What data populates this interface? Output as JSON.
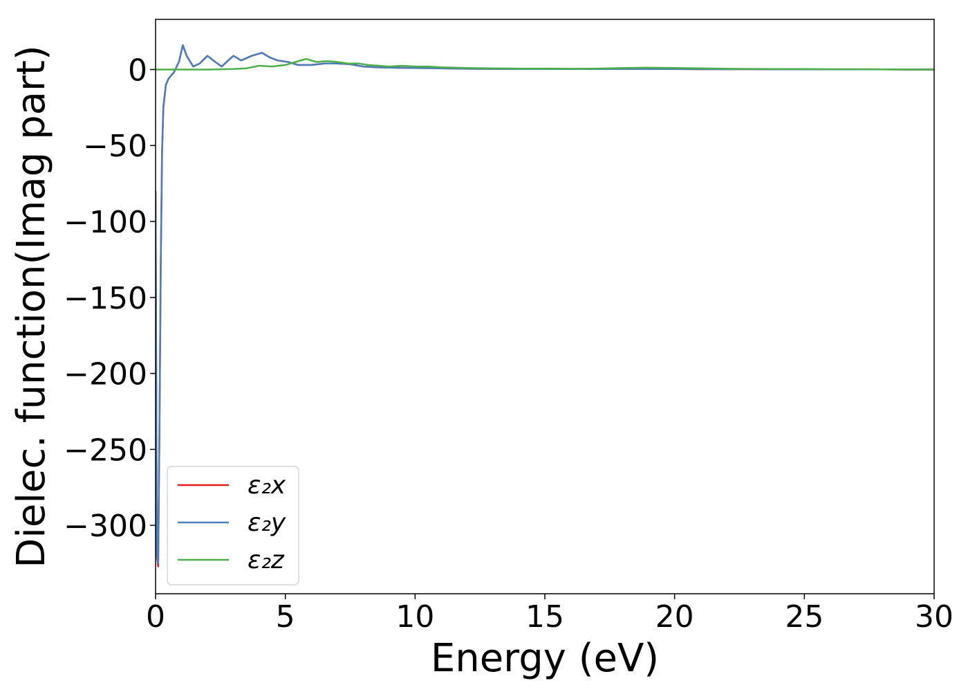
{
  "chart_data": {
    "type": "line",
    "xlabel": "Energy (eV)",
    "ylabel": "Dielec. function(Imag part)",
    "xlim": [
      0,
      30
    ],
    "ylim": [
      -345,
      33
    ],
    "x_ticks": [
      0,
      5,
      10,
      15,
      20,
      25,
      30
    ],
    "y_ticks": [
      0,
      -50,
      -100,
      -150,
      -200,
      -250,
      -300
    ],
    "x_tick_labels": [
      "0",
      "5",
      "10",
      "15",
      "20",
      "25",
      "30"
    ],
    "y_tick_labels": [
      "0",
      "−50",
      "−100",
      "−150",
      "−200",
      "−250",
      "−300"
    ],
    "grid": false,
    "legend_position": "lower-left",
    "series": [
      {
        "name": "ε₂x",
        "color": "#e41a1c",
        "x": [
          0,
          0.05,
          0.1,
          0.15,
          0.2,
          0.25,
          0.3,
          0.4,
          0.5,
          0.7,
          0.9,
          1.05,
          1.2,
          1.45,
          1.7,
          2.0,
          2.3,
          2.55,
          2.8,
          3.0,
          3.3,
          3.7,
          4.1,
          4.4,
          4.7,
          5.1,
          5.5,
          6.0,
          6.5,
          7.0,
          7.5,
          8.0,
          8.5,
          9.0,
          10.0,
          11.0,
          12.0,
          13.0,
          14.0,
          15.0,
          16.0,
          17.0,
          18.0,
          19.0,
          20.0,
          21.0,
          22.0,
          23.0,
          24.0,
          25.0,
          26.0,
          27.0,
          28.0,
          29.0,
          30.0
        ],
        "values": [
          -80,
          -320,
          -327,
          -240,
          -130,
          -55,
          -25,
          -10,
          -6,
          -2,
          5,
          16,
          9,
          2,
          4,
          9,
          5,
          2,
          6,
          9,
          6,
          9,
          11,
          8,
          6,
          5,
          3,
          3,
          4,
          4,
          3.5,
          2,
          1.5,
          1.2,
          1,
          0.8,
          0.5,
          0.4,
          0.3,
          0.3,
          0.3,
          0.3,
          0.3,
          0.3,
          0.3,
          0.2,
          0.2,
          0.2,
          0.1,
          0.1,
          0.1,
          0.1,
          0.1,
          0,
          0
        ]
      },
      {
        "name": "ε₂y",
        "color": "#4a7ebb",
        "x": [
          0,
          0.05,
          0.1,
          0.15,
          0.2,
          0.25,
          0.3,
          0.4,
          0.5,
          0.7,
          0.9,
          1.05,
          1.2,
          1.45,
          1.7,
          2.0,
          2.3,
          2.55,
          2.8,
          3.0,
          3.3,
          3.7,
          4.1,
          4.4,
          4.7,
          5.1,
          5.5,
          6.0,
          6.5,
          7.0,
          7.5,
          8.0,
          8.5,
          9.0,
          10.0,
          11.0,
          12.0,
          13.0,
          14.0,
          15.0,
          16.0,
          17.0,
          18.0,
          19.0,
          20.0,
          21.0,
          22.0,
          23.0,
          24.0,
          25.0,
          26.0,
          27.0,
          28.0,
          29.0,
          30.0
        ],
        "values": [
          -80,
          -318,
          -325,
          -238,
          -128,
          -54,
          -24,
          -10,
          -6,
          -2,
          5,
          16,
          9,
          2,
          4,
          9,
          5,
          2,
          6,
          9,
          6,
          9,
          11,
          8,
          6,
          5,
          3,
          3,
          4,
          4,
          3.5,
          2,
          1.5,
          1.2,
          1,
          0.8,
          0.5,
          0.4,
          0.3,
          0.3,
          0.3,
          0.3,
          0.3,
          0.3,
          0.3,
          0.2,
          0.2,
          0.2,
          0.1,
          0.1,
          0.1,
          0.1,
          0.1,
          0,
          0
        ]
      },
      {
        "name": "ε₂z",
        "color": "#4daf4a",
        "x": [
          0,
          1.0,
          2.0,
          3.0,
          3.5,
          4.0,
          4.5,
          5.0,
          5.4,
          5.8,
          6.2,
          6.6,
          7.0,
          7.4,
          7.8,
          8.2,
          8.6,
          9.0,
          9.5,
          10.0,
          10.5,
          11.0,
          12.0,
          13.0,
          14.0,
          15.0,
          16.0,
          17.0,
          18.0,
          19.0,
          20.0,
          21.0,
          22.0,
          23.0,
          24.0,
          25.0,
          26.0,
          27.0,
          28.0,
          29.0,
          30.0
        ],
        "values": [
          0,
          0,
          0,
          0.3,
          0.8,
          2.5,
          2,
          3,
          5,
          7,
          5,
          5.5,
          5,
          4,
          4,
          3,
          2.5,
          2,
          2.5,
          2,
          2,
          1.5,
          1,
          0.8,
          0.6,
          0.6,
          0.5,
          0.6,
          1,
          1.2,
          1,
          0.8,
          0.5,
          0.4,
          0.3,
          0.3,
          0.2,
          0.2,
          0.1,
          0.1,
          0
        ]
      }
    ]
  }
}
